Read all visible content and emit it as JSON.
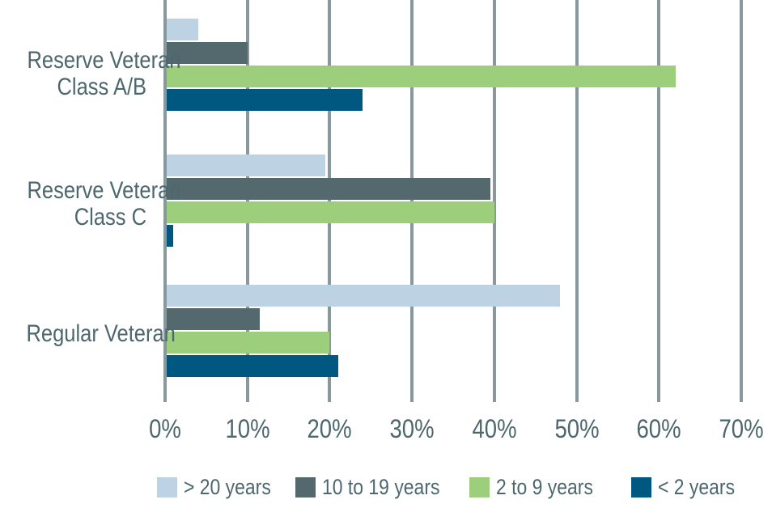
{
  "chart_data": {
    "type": "bar",
    "orientation": "horizontal",
    "unit": "percent",
    "categories": [
      "Reserve Veteran Class A/B",
      "Reserve Veteran Class C",
      "Regular Veteran"
    ],
    "category_label_lines": [
      [
        "Reserve Veteran",
        "Class A/B"
      ],
      [
        "Reserve Veteran",
        "Class C"
      ],
      [
        "Regular Veteran"
      ]
    ],
    "series": [
      {
        "name": "> 20 years",
        "color": "#BDD3E4",
        "values": [
          4,
          19.5,
          48
        ]
      },
      {
        "name": "10 to 19 years",
        "color": "#54696E",
        "values": [
          10,
          39.5,
          11.5
        ]
      },
      {
        "name": "2 to 9 years",
        "color": "#9CCE7B",
        "values": [
          62,
          40,
          20
        ]
      },
      {
        "name": "< 2 years",
        "color": "#005780",
        "values": [
          24,
          1,
          21
        ]
      }
    ],
    "xlim": [
      0,
      70
    ],
    "x_tick_labels": [
      "0%",
      "10%",
      "20%",
      "30%",
      "40%",
      "50%",
      "60%",
      "70%"
    ],
    "grid": true,
    "legend_position": "bottom",
    "colors": {
      "gridline": "#88989C",
      "text": "#4C676D",
      "background": "#FFFFFF"
    }
  }
}
